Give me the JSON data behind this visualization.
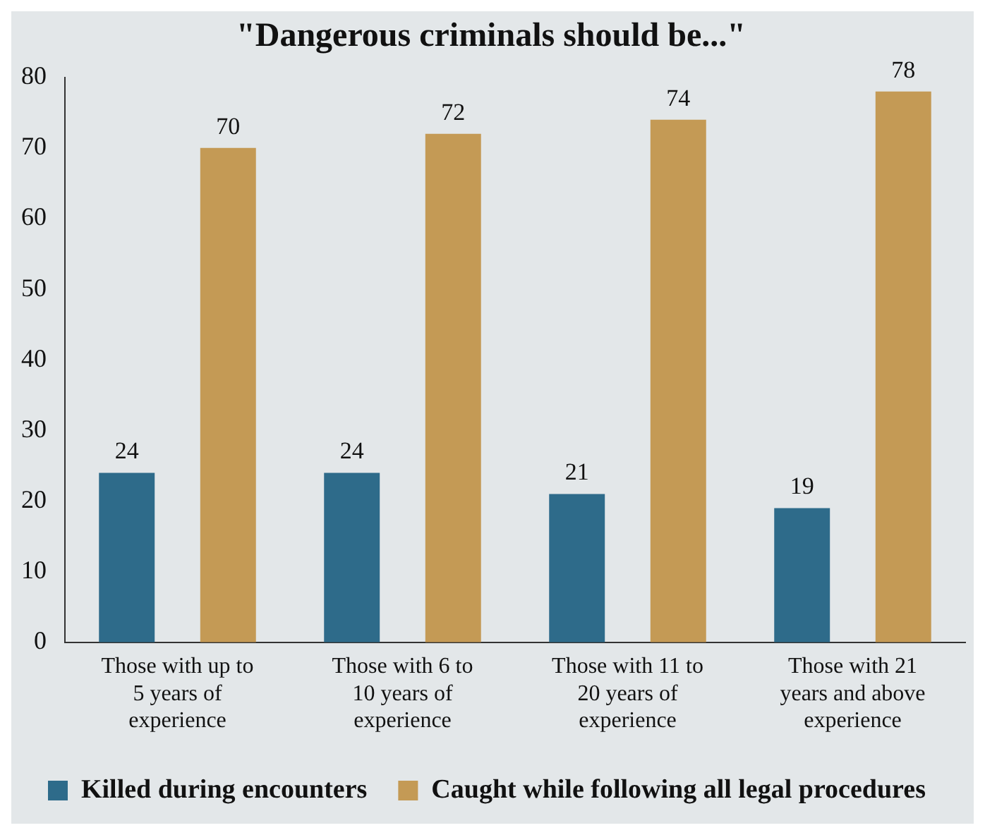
{
  "chart_data": {
    "type": "bar",
    "title": "\"Dangerous criminals should be...\"",
    "categories": [
      "Those with up to 5 years of experience",
      "Those with 6 to 10 years of experience",
      "Those with 11 to 20 years of experience",
      "Those with 21 years and above experience"
    ],
    "series": [
      {
        "name": "Killed during encounters",
        "color": "#2e6b8a",
        "values": [
          24,
          24,
          21,
          19
        ]
      },
      {
        "name": "Caught while following all legal procedures",
        "color": "#c49a55",
        "values": [
          70,
          72,
          74,
          78
        ]
      }
    ],
    "ylim": [
      0,
      80
    ],
    "yticks": [
      0,
      10,
      20,
      30,
      40,
      50,
      60,
      70,
      80
    ],
    "grid": false,
    "legend": "bottom left",
    "data_labels": true
  }
}
